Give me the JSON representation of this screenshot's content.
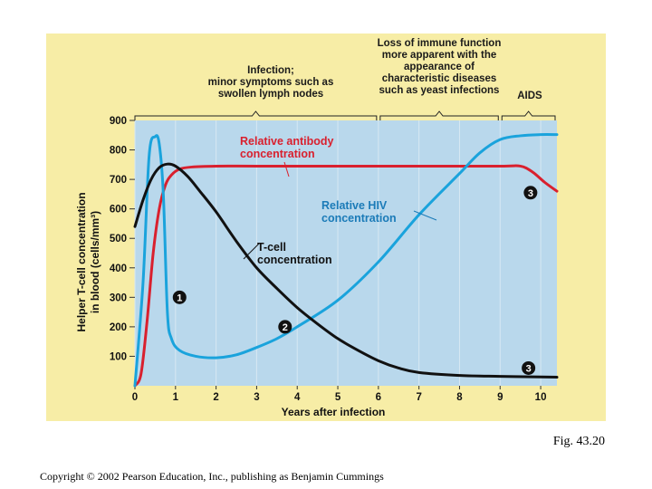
{
  "figure_caption": "Fig. 43.20",
  "copyright": "Copyright © 2002 Pearson Education, Inc., publishing as Benjamin Cummings",
  "colors": {
    "panel_background": "#f7eda6",
    "plot_background": "#b9d8ec",
    "antibody": "#d9202e",
    "hiv": "#1aa3dc",
    "tcell": "#111111",
    "annotation_blue": "#1b7bb8"
  },
  "chart_data": {
    "type": "line",
    "xlabel": "Years after infection",
    "ylabel_line1": "Helper T-cell concentration",
    "ylabel_line2": "in blood (cells/mm³)",
    "xlim": [
      0,
      10.4
    ],
    "ylim": [
      0,
      900
    ],
    "x_ticks": [
      "0",
      "1",
      "2",
      "3",
      "4",
      "5",
      "6",
      "7",
      "8",
      "9",
      "10"
    ],
    "y_ticks": [
      "100",
      "200",
      "300",
      "400",
      "500",
      "600",
      "700",
      "800",
      "900"
    ],
    "grid": "vertical",
    "series": [
      {
        "key": "antibody",
        "name_line1": "Relative antibody",
        "name_line2": "concentration",
        "x": [
          0,
          0.15,
          0.3,
          0.45,
          0.6,
          0.75,
          0.9,
          1.1,
          1.4,
          2,
          3,
          5,
          7,
          9,
          9.5,
          9.8,
          10.1,
          10.4
        ],
        "y": [
          0,
          40,
          220,
          450,
          600,
          680,
          715,
          735,
          742,
          745,
          745,
          745,
          745,
          745,
          745,
          725,
          690,
          660
        ]
      },
      {
        "key": "hiv",
        "name_line1": "Relative HIV",
        "name_line2": "concentration",
        "x": [
          0,
          0.2,
          0.35,
          0.5,
          0.6,
          0.7,
          0.8,
          0.9,
          1.1,
          1.5,
          2,
          2.5,
          3,
          3.5,
          4,
          5,
          6,
          7,
          8,
          8.5,
          9,
          9.5,
          10,
          10.4
        ],
        "y": [
          0,
          350,
          780,
          845,
          820,
          650,
          250,
          160,
          120,
          100,
          95,
          105,
          130,
          160,
          200,
          290,
          420,
          580,
          720,
          790,
          835,
          848,
          852,
          852
        ]
      },
      {
        "key": "tcell",
        "name_line1": "T-cell",
        "name_line2": "concentration",
        "x": [
          0,
          0.2,
          0.4,
          0.6,
          0.8,
          1.0,
          1.3,
          1.6,
          2,
          2.5,
          3,
          3.5,
          4,
          4.5,
          5,
          5.5,
          6,
          6.5,
          7,
          8,
          9,
          10,
          10.4
        ],
        "y": [
          540,
          630,
          700,
          740,
          752,
          745,
          710,
          660,
          590,
          490,
          400,
          330,
          265,
          210,
          160,
          120,
          85,
          60,
          45,
          35,
          32,
          30,
          29
        ]
      }
    ],
    "annotations": [
      {
        "key": "infection",
        "lines": [
          "Infection;",
          "minor symptoms such as",
          "swollen lymph nodes"
        ],
        "x_from": 0,
        "x_to": 6
      },
      {
        "key": "loss",
        "lines": [
          "Loss of immune function",
          "more apparent with the",
          "appearance of",
          "characteristic diseases",
          "such as yeast infections"
        ],
        "x_from": 6,
        "x_to": 9
      },
      {
        "key": "aids",
        "lines": [
          "AIDS"
        ],
        "x_from": 9,
        "x_to": 10.4
      }
    ],
    "markers": [
      {
        "label": "1",
        "x": 1.1,
        "y": 300
      },
      {
        "label": "2",
        "x": 3.7,
        "y": 200
      },
      {
        "label": "3",
        "x": 9.7,
        "y": 60
      },
      {
        "label": "3",
        "x": 9.75,
        "y": 655
      }
    ]
  }
}
